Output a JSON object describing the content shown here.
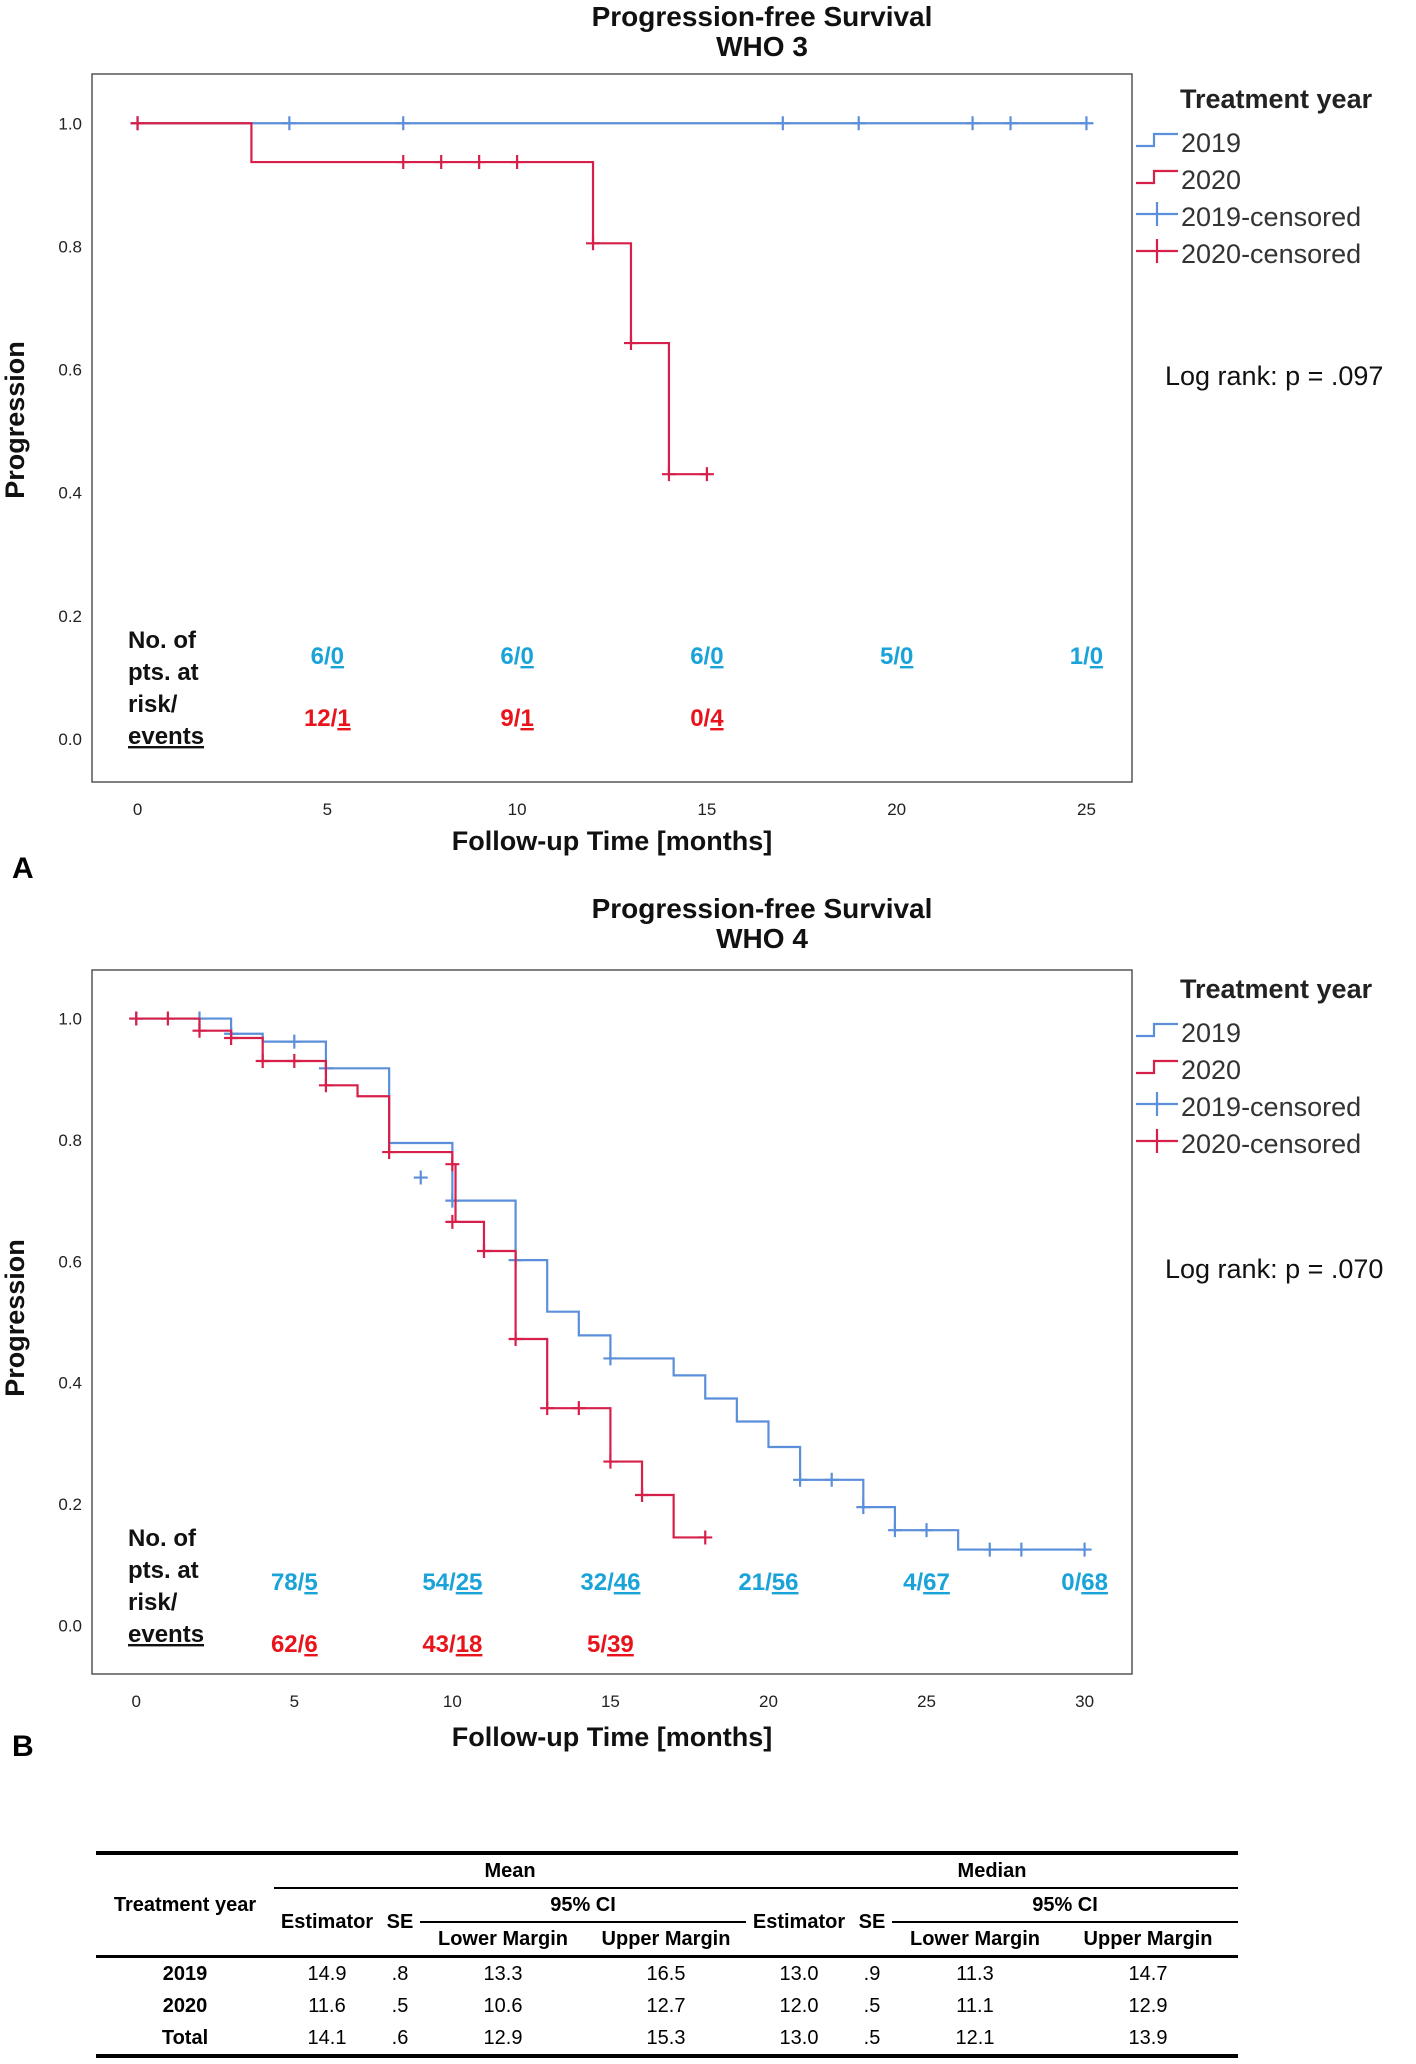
{
  "chart_data": [
    {
      "type": "line",
      "id": "A",
      "panel_label": "A",
      "title": "Progression-free Survival",
      "subtitle": "WHO 3",
      "xlabel": "Follow-up Time [months]",
      "ylabel": "Progression",
      "xlim": [
        -1.2,
        26.2
      ],
      "ylim": [
        -0.07,
        1.08
      ],
      "xticks": [
        0,
        5,
        10,
        15,
        20,
        25
      ],
      "xtick_labels": [
        "0",
        "5",
        "10",
        "15",
        "20",
        "25"
      ],
      "yticks": [
        0.0,
        0.2,
        0.4,
        0.6,
        0.8,
        1.0
      ],
      "ytick_labels": [
        "0.0",
        "0.2",
        "0.4",
        "0.6",
        "0.8",
        "1.0"
      ],
      "legend_title": "Treatment year",
      "legend_position": "right",
      "legend_entries": [
        "2019",
        "2020",
        "2019-censored",
        "2020-censored"
      ],
      "annotation": "Log rank: p = .097",
      "risk_label_lines": [
        "No. of",
        "pts. at",
        "risk/",
        "events"
      ],
      "series": [
        {
          "name": "2019",
          "color": "#5b8fd9",
          "steps": [
            [
              0,
              1.0
            ],
            [
              25,
              1.0
            ]
          ],
          "censored": [
            [
              0,
              1.0
            ],
            [
              4,
              1.0
            ],
            [
              7,
              1.0
            ],
            [
              17,
              1.0
            ],
            [
              19,
              1.0
            ],
            [
              22,
              1.0
            ],
            [
              23,
              1.0
            ],
            [
              25,
              1.0
            ]
          ]
        },
        {
          "name": "2020",
          "color": "#d6204a",
          "steps": [
            [
              0,
              1.0
            ],
            [
              3,
              0.937
            ],
            [
              12,
              0.805
            ],
            [
              13,
              0.643
            ],
            [
              14,
              0.43
            ],
            [
              15,
              0.43
            ]
          ],
          "censored": [
            [
              0,
              1.0
            ],
            [
              7,
              0.937
            ],
            [
              8,
              0.937
            ],
            [
              9,
              0.937
            ],
            [
              10,
              0.937
            ],
            [
              12,
              0.805
            ],
            [
              13,
              0.643
            ],
            [
              14,
              0.43
            ],
            [
              15,
              0.43
            ]
          ]
        }
      ],
      "risk_table": {
        "2019": [
          {
            "x": 5,
            "at_risk": "6",
            "events": "0"
          },
          {
            "x": 10,
            "at_risk": "6",
            "events": "0"
          },
          {
            "x": 15,
            "at_risk": "6",
            "events": "0"
          },
          {
            "x": 20,
            "at_risk": "5",
            "events": "0"
          },
          {
            "x": 25,
            "at_risk": "1",
            "events": "0"
          }
        ],
        "2020": [
          {
            "x": 5,
            "at_risk": "12",
            "events": "1"
          },
          {
            "x": 10,
            "at_risk": "9",
            "events": "1"
          },
          {
            "x": 15,
            "at_risk": "0",
            "events": "4"
          }
        ]
      }
    },
    {
      "type": "line",
      "id": "B",
      "panel_label": "B",
      "title": "Progression-free Survival",
      "subtitle": "WHO 4",
      "xlabel": "Follow-up Time [months]",
      "ylabel": "Progression",
      "xlim": [
        -1.4,
        31.5
      ],
      "ylim": [
        -0.08,
        1.08
      ],
      "xticks": [
        0,
        5,
        10,
        15,
        20,
        25,
        30
      ],
      "xtick_labels": [
        "0",
        "5",
        "10",
        "15",
        "20",
        "25",
        "30"
      ],
      "yticks": [
        0.0,
        0.2,
        0.4,
        0.6,
        0.8,
        1.0
      ],
      "ytick_labels": [
        "0.0",
        "0.2",
        "0.4",
        "0.6",
        "0.8",
        "1.0"
      ],
      "legend_title": "Treatment year",
      "legend_position": "right",
      "legend_entries": [
        "2019",
        "2020",
        "2019-censored",
        "2020-censored"
      ],
      "annotation": "Log rank: p = .070",
      "risk_label_lines": [
        "No. of",
        "pts. at",
        "risk/",
        "events"
      ],
      "series": [
        {
          "name": "2019",
          "color": "#5b8fd9",
          "steps": [
            [
              0,
              1.0
            ],
            [
              3,
              0.975
            ],
            [
              4,
              0.962
            ],
            [
              6,
              0.918
            ],
            [
              8,
              0.795
            ],
            [
              10,
              0.7
            ],
            [
              12,
              0.602
            ],
            [
              13,
              0.517
            ],
            [
              14,
              0.478
            ],
            [
              15,
              0.44
            ],
            [
              17,
              0.412
            ],
            [
              18,
              0.374
            ],
            [
              19,
              0.336
            ],
            [
              20,
              0.294
            ],
            [
              21,
              0.24
            ],
            [
              23,
              0.195
            ],
            [
              24,
              0.157
            ],
            [
              26,
              0.125
            ],
            [
              30,
              0.125
            ]
          ],
          "censored": [
            [
              0,
              1.0
            ],
            [
              2,
              1.0
            ],
            [
              3,
              0.975
            ],
            [
              5,
              0.962
            ],
            [
              6,
              0.918
            ],
            [
              9,
              0.738
            ],
            [
              10,
              0.7
            ],
            [
              12,
              0.602
            ],
            [
              15,
              0.44
            ],
            [
              21,
              0.24
            ],
            [
              22,
              0.24
            ],
            [
              23,
              0.195
            ],
            [
              24,
              0.157
            ],
            [
              25,
              0.157
            ],
            [
              27,
              0.125
            ],
            [
              28,
              0.125
            ],
            [
              30,
              0.125
            ]
          ]
        },
        {
          "name": "2020",
          "color": "#d6204a",
          "steps": [
            [
              0,
              1.0
            ],
            [
              2,
              0.98
            ],
            [
              3,
              0.968
            ],
            [
              4,
              0.93
            ],
            [
              6,
              0.89
            ],
            [
              7,
              0.872
            ],
            [
              8,
              0.78
            ],
            [
              10,
              0.76
            ],
            [
              10.1,
              0.665
            ],
            [
              11,
              0.617
            ],
            [
              12,
              0.472
            ],
            [
              13,
              0.358
            ],
            [
              15,
              0.27
            ],
            [
              16,
              0.215
            ],
            [
              17,
              0.145
            ],
            [
              18,
              0.145
            ]
          ],
          "censored": [
            [
              0,
              1.0
            ],
            [
              1,
              1.0
            ],
            [
              2,
              0.98
            ],
            [
              3,
              0.968
            ],
            [
              4,
              0.93
            ],
            [
              5,
              0.93
            ],
            [
              6,
              0.89
            ],
            [
              8,
              0.78
            ],
            [
              10,
              0.76
            ],
            [
              10,
              0.665
            ],
            [
              11,
              0.617
            ],
            [
              12,
              0.472
            ],
            [
              13,
              0.358
            ],
            [
              14,
              0.358
            ],
            [
              15,
              0.27
            ],
            [
              16,
              0.215
            ],
            [
              18,
              0.145
            ]
          ]
        }
      ],
      "risk_table": {
        "2019": [
          {
            "x": 5,
            "at_risk": "78",
            "events": "5"
          },
          {
            "x": 10,
            "at_risk": "54",
            "events": "25"
          },
          {
            "x": 15,
            "at_risk": "32",
            "events": "46"
          },
          {
            "x": 20,
            "at_risk": "21",
            "events": "56"
          },
          {
            "x": 25,
            "at_risk": "4",
            "events": "67"
          },
          {
            "x": 30,
            "at_risk": "0",
            "events": "68"
          }
        ],
        "2020": [
          {
            "x": 5,
            "at_risk": "62",
            "events": "6"
          },
          {
            "x": 10,
            "at_risk": "43",
            "events": "18"
          },
          {
            "x": 15,
            "at_risk": "5",
            "events": "39"
          }
        ]
      }
    }
  ],
  "colors": {
    "series_2019": "#5b8fd9",
    "series_2020": "#d6204a",
    "risk_2019": "#1aa3d9",
    "risk_2020": "#e8141c"
  },
  "table": {
    "row_header": "Treatment year",
    "group_mean": "Mean",
    "group_median": "Median",
    "col_estimator": "Estimator",
    "col_se": "SE",
    "col_ci": "95% CI",
    "col_lower": "Lower Margin",
    "col_upper": "Upper Margin",
    "rows": [
      {
        "label": "2019",
        "mean_est": "14.9",
        "mean_se": ".8",
        "mean_lower": "13.3",
        "mean_upper": "16.5",
        "med_est": "13.0",
        "med_se": ".9",
        "med_lower": "11.3",
        "med_upper": "14.7"
      },
      {
        "label": "2020",
        "mean_est": "11.6",
        "mean_se": ".5",
        "mean_lower": "10.6",
        "mean_upper": "12.7",
        "med_est": "12.0",
        "med_se": ".5",
        "med_lower": "11.1",
        "med_upper": "12.9"
      },
      {
        "label": "Total",
        "mean_est": "14.1",
        "mean_se": ".6",
        "mean_lower": "12.9",
        "mean_upper": "15.3",
        "med_est": "13.0",
        "med_se": ".5",
        "med_lower": "12.1",
        "med_upper": "13.9"
      }
    ]
  }
}
